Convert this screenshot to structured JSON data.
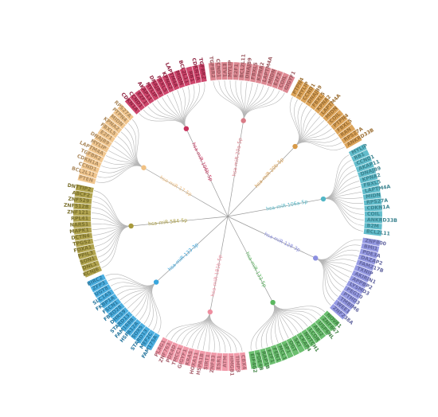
{
  "diagram": {
    "center_label": "",
    "mirnas": [
      {
        "name": "hsa-miR-20a-5p",
        "color": "#d97b86",
        "genes": [
          "TGFBR2",
          "CCND1",
          "ETV1",
          "MYLIP",
          "E2F1",
          "BCL2L11",
          "DNAJB9",
          "FBXL5",
          "KPNA2",
          "LAPTM4A",
          "MIDN",
          "E2F2",
          "COIL",
          "GIGYF1"
        ]
      },
      {
        "name": "hsa-miR-20b-5p",
        "color": "#d89a48",
        "genes": [
          "PTPN4",
          "MYLIP",
          "CCND1",
          "DNAJB9",
          "FBXL5",
          "KPNA2",
          "LAPTM4A",
          "MIDN",
          "COIL",
          "PTPN4",
          "FBXL5",
          "RAN",
          "RPS27A",
          "ANKRD33B"
        ]
      },
      {
        "name": "hsa-miR-106a-5p",
        "color": "#52b6c6",
        "genes": [
          "MYLIP",
          "RB1",
          "CCND1",
          "AKAP11",
          "DNAJB9",
          "KPNA2",
          "FBXL5",
          "LAPTM4A",
          "MIDN",
          "RPS27A",
          "CDKN1A",
          "COIL",
          "ANKRD33B",
          "B2M",
          "BCL2L11"
        ]
      },
      {
        "name": "hsa-miR-128-3p",
        "color": "#8b8fe0",
        "genes": [
          "ZNF800",
          "BMI1",
          "PDE3A",
          "DAZAP2",
          "FAM217B",
          "TXNIP",
          "AKIRIN1",
          "APPBP2",
          "LYSMD3",
          "PEG10",
          "PTHD3",
          "TMBIM6",
          "WEE1",
          "ZNF238A"
        ]
      },
      {
        "name": "hsa-miR-133-5p",
        "color": "#5cb860",
        "genes": [
          "NOVA1",
          "ZNF667",
          "USP6NL",
          "ABI2",
          "LCOR",
          "NOTCH1",
          "CKAP4",
          "SKI",
          "OGT",
          "SP1",
          "MCL1",
          "FEN1",
          "E2F1",
          "RAP1B",
          "PDE4B",
          "EIF4G2"
        ]
      },
      {
        "name": "hsa-miR-181b-5p",
        "color": "#ee8fa0",
        "genes": [
          "CBX4",
          "TIMP3",
          "HMGB1",
          "ATM",
          "ESR1",
          "ZNF83",
          "SIRT1",
          "HSPA1B",
          "HOXA11",
          "KRAS",
          "GIGYF1",
          "TMCC1",
          "PDE4D",
          "ZNF763",
          "PLAG1"
        ]
      },
      {
        "name": "hsa-miR-133-3p",
        "color": "#3aa6dd",
        "genes": [
          "FAM175A",
          "MEF2C",
          "STARD13",
          "SOX5",
          "HSPA12A",
          "FAM168B",
          "STARD13",
          "DHRS9",
          "FBXO28",
          "FSCN1",
          "FKBP1A",
          "SLC1A5",
          "UGT8",
          "ZFP3",
          "BIRC2"
        ]
      },
      {
        "name": "hsa-miR-584-5p",
        "color": "#a89a3c",
        "genes": [
          "KCNJ6",
          "DNL1",
          "SON1",
          "PPIL3",
          "FOXA1",
          "TPGS2",
          "DCTN4",
          "MAPK1",
          "NARS1",
          "RPL41",
          "ZNF121",
          "ZNF512B",
          "ZNF529",
          "ABCF2",
          "DNTTIP2"
        ]
      },
      {
        "name": "hsa-miR-17-5p",
        "color": "#f0c184",
        "genes": [
          "PTEN",
          "BCL2L11",
          "CCND1",
          "CDKN1A",
          "TGFBR2",
          "LAPTM4A",
          "MYLIP",
          "DNAJB9",
          "E2F1",
          "FBXL5",
          "KPNA2",
          "MIDN",
          "PTPN4",
          "RPS27A"
        ]
      },
      {
        "name": "hsa-miR-106b-5p",
        "color": "#c8325c",
        "genes": [
          "CDKN1A",
          "CCND1",
          "E2F1",
          "AKAP11",
          "MYLIP",
          "DNAJB9",
          "FBXL5",
          "KPNA2",
          "LAPTM4A",
          "MIDN",
          "BCL2L11",
          "RB1",
          "CDKN1A",
          "TGFBR2"
        ]
      }
    ]
  }
}
